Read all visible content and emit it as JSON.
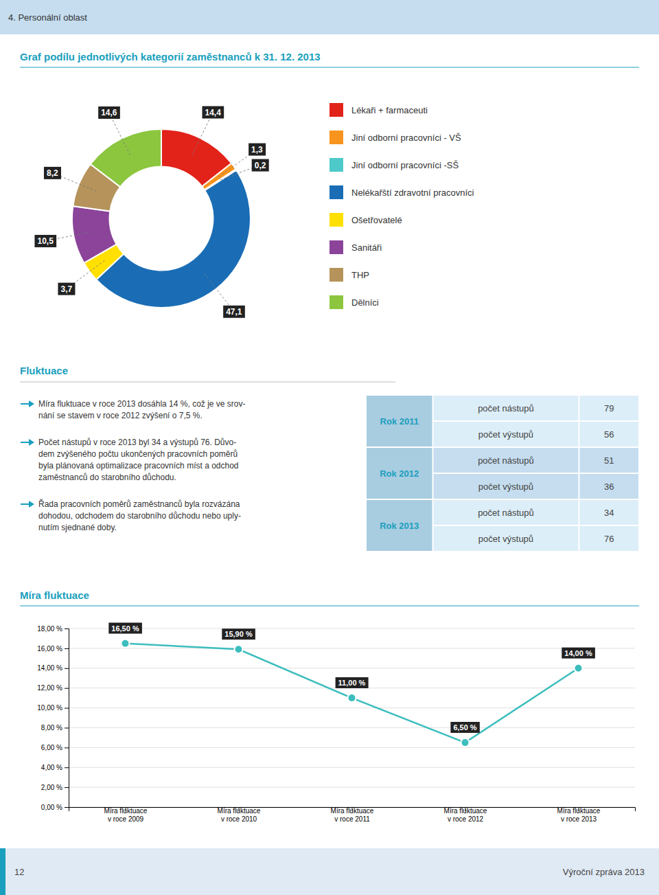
{
  "header": "4. Personální oblast",
  "chart_data": [
    {
      "type": "pie",
      "title": "Graf podílu jednotlivých kategorií zaměstnanců k 31. 12. 2013",
      "categories": [
        "Lékaři + farmaceuti",
        "Jiní odborní pracovníci - VŠ",
        "Jiní odborní pracovníci -SŠ",
        "Nelékařští zdravotní pracovníci",
        "Ošetřovatelé",
        "Sanitáři",
        "THP",
        "Dělníci"
      ],
      "values": [
        14.4,
        1.3,
        0.2,
        47.1,
        3.7,
        10.5,
        8.2,
        14.6
      ],
      "value_labels": [
        "14,4",
        "1,3",
        "0,2",
        "47,1",
        "3,7",
        "10,5",
        "8,2",
        "14,6"
      ],
      "colors": [
        "#e2231a",
        "#f7941d",
        "#4ec9c9",
        "#1a6db5",
        "#ffe000",
        "#8b449a",
        "#b5935a",
        "#8cc63f"
      ],
      "data_labels": true,
      "legend": "right"
    },
    {
      "type": "line",
      "title": "Míra fluktuace",
      "categories": [
        "Míra fluktuace\nv roce 2009",
        "Míra fluktuace\nv roce 2010",
        "Míra fluktuace\nv roce 2011",
        "Míra fluktuace\nv roce 2012",
        "Míra fluktuace\nv roce 2013"
      ],
      "values": [
        16.5,
        15.9,
        11.0,
        6.5,
        14.0
      ],
      "value_labels": [
        "16,50 %",
        "15,90 %",
        "11,00 %",
        "6,50 %",
        "14,00 %"
      ],
      "color": "#3dbdbd",
      "marker": "circle",
      "ylim": [
        0,
        18
      ],
      "yticks": [
        {
          "value": 0,
          "label": "0,00 %"
        },
        {
          "value": 2,
          "label": "2,00 %"
        },
        {
          "value": 4,
          "label": "4,00 %"
        },
        {
          "value": 6,
          "label": "6,00 %"
        },
        {
          "value": 8,
          "label": "8,00 %"
        },
        {
          "value": 10,
          "label": "10,00 %"
        },
        {
          "value": 12,
          "label": "12,00 %"
        },
        {
          "value": 14,
          "label": "14,00 %"
        },
        {
          "value": 16,
          "label": "16,00 %"
        },
        {
          "value": 18,
          "label": "18,00 %"
        }
      ],
      "grid": true,
      "data_labels": true
    }
  ],
  "fluctuation": {
    "title": "Fluktuace",
    "bullets": [
      "Míra fluktuace v roce 2013 dosáhla 14 %, což je ve srov-\nnání se stavem v roce 2012 zvýšení o 7,5 %.",
      "Počet nástupů v roce 2013 byl 34 a výstupů 76. Důvo-\ndem zvýšeného počtu ukončených pracovních poměrů\nbyla plánovaná optimalizace pracovních míst a odchod\nzaměstnanců do starobního důchodu.",
      "Řada pracovních poměrů zaměstnanců byla rozvázána\ndohodou, odchodem do starobního důchodu nebo uply-\nnutím sjednané doby."
    ],
    "table": [
      {
        "year": "Rok 2011",
        "rows": [
          {
            "label": "počet nástupů",
            "value": 79
          },
          {
            "label": "počet výstupů",
            "value": 56
          }
        ]
      },
      {
        "year": "Rok 2012",
        "rows": [
          {
            "label": "počet nástupů",
            "value": 51
          },
          {
            "label": "počet výstupů",
            "value": 36
          }
        ]
      },
      {
        "year": "Rok 2013",
        "rows": [
          {
            "label": "počet nástupů",
            "value": 34
          },
          {
            "label": "počet výstupů",
            "value": 76
          }
        ]
      }
    ]
  },
  "footer": {
    "page": "12",
    "text": "Výroční zpráva 2013"
  }
}
